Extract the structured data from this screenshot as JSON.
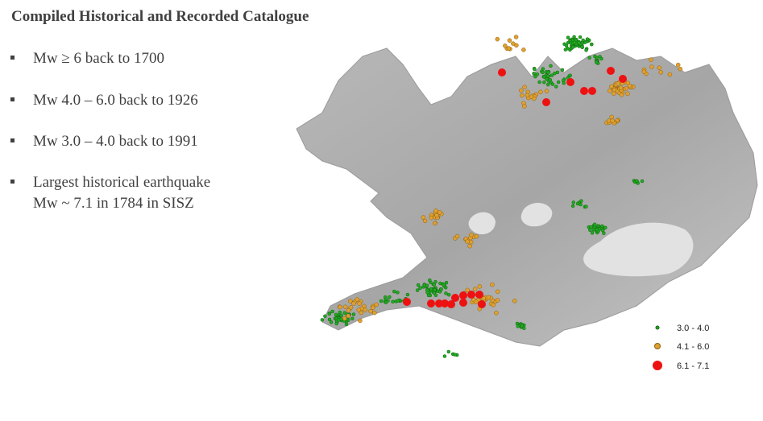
{
  "title": "Compiled Historical and Recorded Catalogue",
  "bullets": [
    {
      "lines": [
        "Mw ≥ 6 back to 1700"
      ]
    },
    {
      "lines": [
        "Mw 4.0 – 6.0 back to 1926"
      ]
    },
    {
      "lines": [
        "Mw 3.0 – 4.0 back to 1991"
      ]
    },
    {
      "lines": [
        "Largest historical earthquake",
        "Mw ~ 7.1 in 1784 in SISZ"
      ]
    }
  ],
  "legend": [
    "3.0 - 4.0",
    "4.1 - 6.0",
    "6.1 - 7.1"
  ]
}
